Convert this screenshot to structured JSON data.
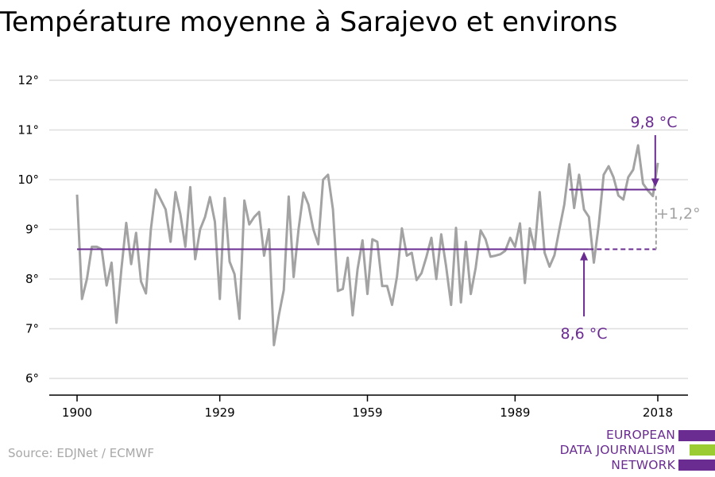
{
  "title": "Température moyenne à Sarajevo et environs",
  "source": "Source: EDJNet / ECMWF",
  "logo": {
    "lines": [
      "EUROPEAN",
      "DATA JOURNALISM",
      "NETWORK"
    ]
  },
  "colors": {
    "series": "#a3a3a3",
    "accent": "#6a2c91",
    "grid": "#dedede",
    "logo_green": "#9bcc32",
    "diff": "#a3a3a3"
  },
  "chart_data": {
    "type": "line",
    "title": "Température moyenne à Sarajevo et environs",
    "xlabel": "",
    "ylabel": "",
    "xlim": [
      1900,
      2018
    ],
    "ylim": [
      6,
      12
    ],
    "x_ticks": [
      1900,
      1929,
      1959,
      1989,
      2018
    ],
    "x_tick_labels": [
      "1900",
      "1929",
      "1959",
      "1989",
      "2018"
    ],
    "y_ticks": [
      6,
      7,
      8,
      9,
      10,
      11,
      12
    ],
    "y_tick_labels": [
      "6°",
      "7°",
      "8°",
      "9°",
      "10°",
      "11°",
      "12°"
    ],
    "grid": "horizontal",
    "series": [
      {
        "x": [
          1900,
          1901,
          1902,
          1903,
          1904,
          1905,
          1906,
          1907,
          1908,
          1909,
          1910,
          1911,
          1912,
          1913,
          1914,
          1915,
          1916,
          1917,
          1918,
          1919,
          1920,
          1921,
          1922,
          1923,
          1924,
          1925,
          1926,
          1927,
          1928,
          1929,
          1930,
          1931,
          1932,
          1933,
          1934,
          1935,
          1936,
          1937,
          1938,
          1939,
          1940,
          1941,
          1942,
          1943,
          1944,
          1945,
          1946,
          1947,
          1948,
          1949,
          1950,
          1951,
          1952,
          1953,
          1954,
          1955,
          1956,
          1957,
          1958,
          1959,
          1960,
          1961,
          1962,
          1963,
          1964,
          1965,
          1966,
          1967,
          1968,
          1969,
          1970,
          1971,
          1972,
          1973,
          1974,
          1975,
          1976,
          1977,
          1978,
          1979,
          1980,
          1981,
          1982,
          1983,
          1984,
          1985,
          1986,
          1987,
          1988,
          1989,
          1990,
          1991,
          1992,
          1993,
          1994,
          1995,
          1996,
          1997,
          1998,
          1999,
          2000,
          2001,
          2002,
          2003,
          2004,
          2005,
          2006,
          2007,
          2008,
          2009,
          2010,
          2011,
          2012,
          2013,
          2014,
          2015,
          2016,
          2017,
          2018
        ],
        "values": [
          9.7,
          7.6,
          8.0,
          8.65,
          8.65,
          8.6,
          7.87,
          8.33,
          7.12,
          8.2,
          9.13,
          8.3,
          8.93,
          7.95,
          7.71,
          9.0,
          9.8,
          9.6,
          9.4,
          8.75,
          9.75,
          9.3,
          8.65,
          9.85,
          8.4,
          9.0,
          9.25,
          9.65,
          9.15,
          7.6,
          9.63,
          8.35,
          8.1,
          7.2,
          9.58,
          9.1,
          9.25,
          9.35,
          8.47,
          9.0,
          6.67,
          7.27,
          7.78,
          9.66,
          8.04,
          9.0,
          9.74,
          9.5,
          9.0,
          8.7,
          10.0,
          10.1,
          9.4,
          7.76,
          7.8,
          8.43,
          7.27,
          8.2,
          8.78,
          7.7,
          8.8,
          8.75,
          7.86,
          7.86,
          7.48,
          8.05,
          9.02,
          8.47,
          8.53,
          7.98,
          8.12,
          8.45,
          8.83,
          8.0,
          8.9,
          8.25,
          7.48,
          9.03,
          7.53,
          8.75,
          7.7,
          8.23,
          8.98,
          8.8,
          8.45,
          8.47,
          8.5,
          8.57,
          8.83,
          8.65,
          9.12,
          7.92,
          9.02,
          8.6,
          9.75,
          8.53,
          8.25,
          8.48,
          9.0,
          9.5,
          10.31,
          9.43,
          10.1,
          9.4,
          9.25,
          8.33,
          9.1,
          10.1,
          10.27,
          10.05,
          9.68,
          9.6,
          10.05,
          10.2,
          10.69,
          9.92,
          9.78,
          9.67,
          10.34
        ]
      }
    ],
    "annotations": [
      {
        "text": "9,8 °C",
        "value": 9.8,
        "x_range": [
          2000,
          2018
        ]
      },
      {
        "text": "8,6 °C",
        "value": 8.6,
        "x_range": [
          1900,
          2018
        ]
      },
      {
        "text": "+1,2°",
        "from": 8.6,
        "to": 9.8,
        "x": 2018
      }
    ]
  }
}
